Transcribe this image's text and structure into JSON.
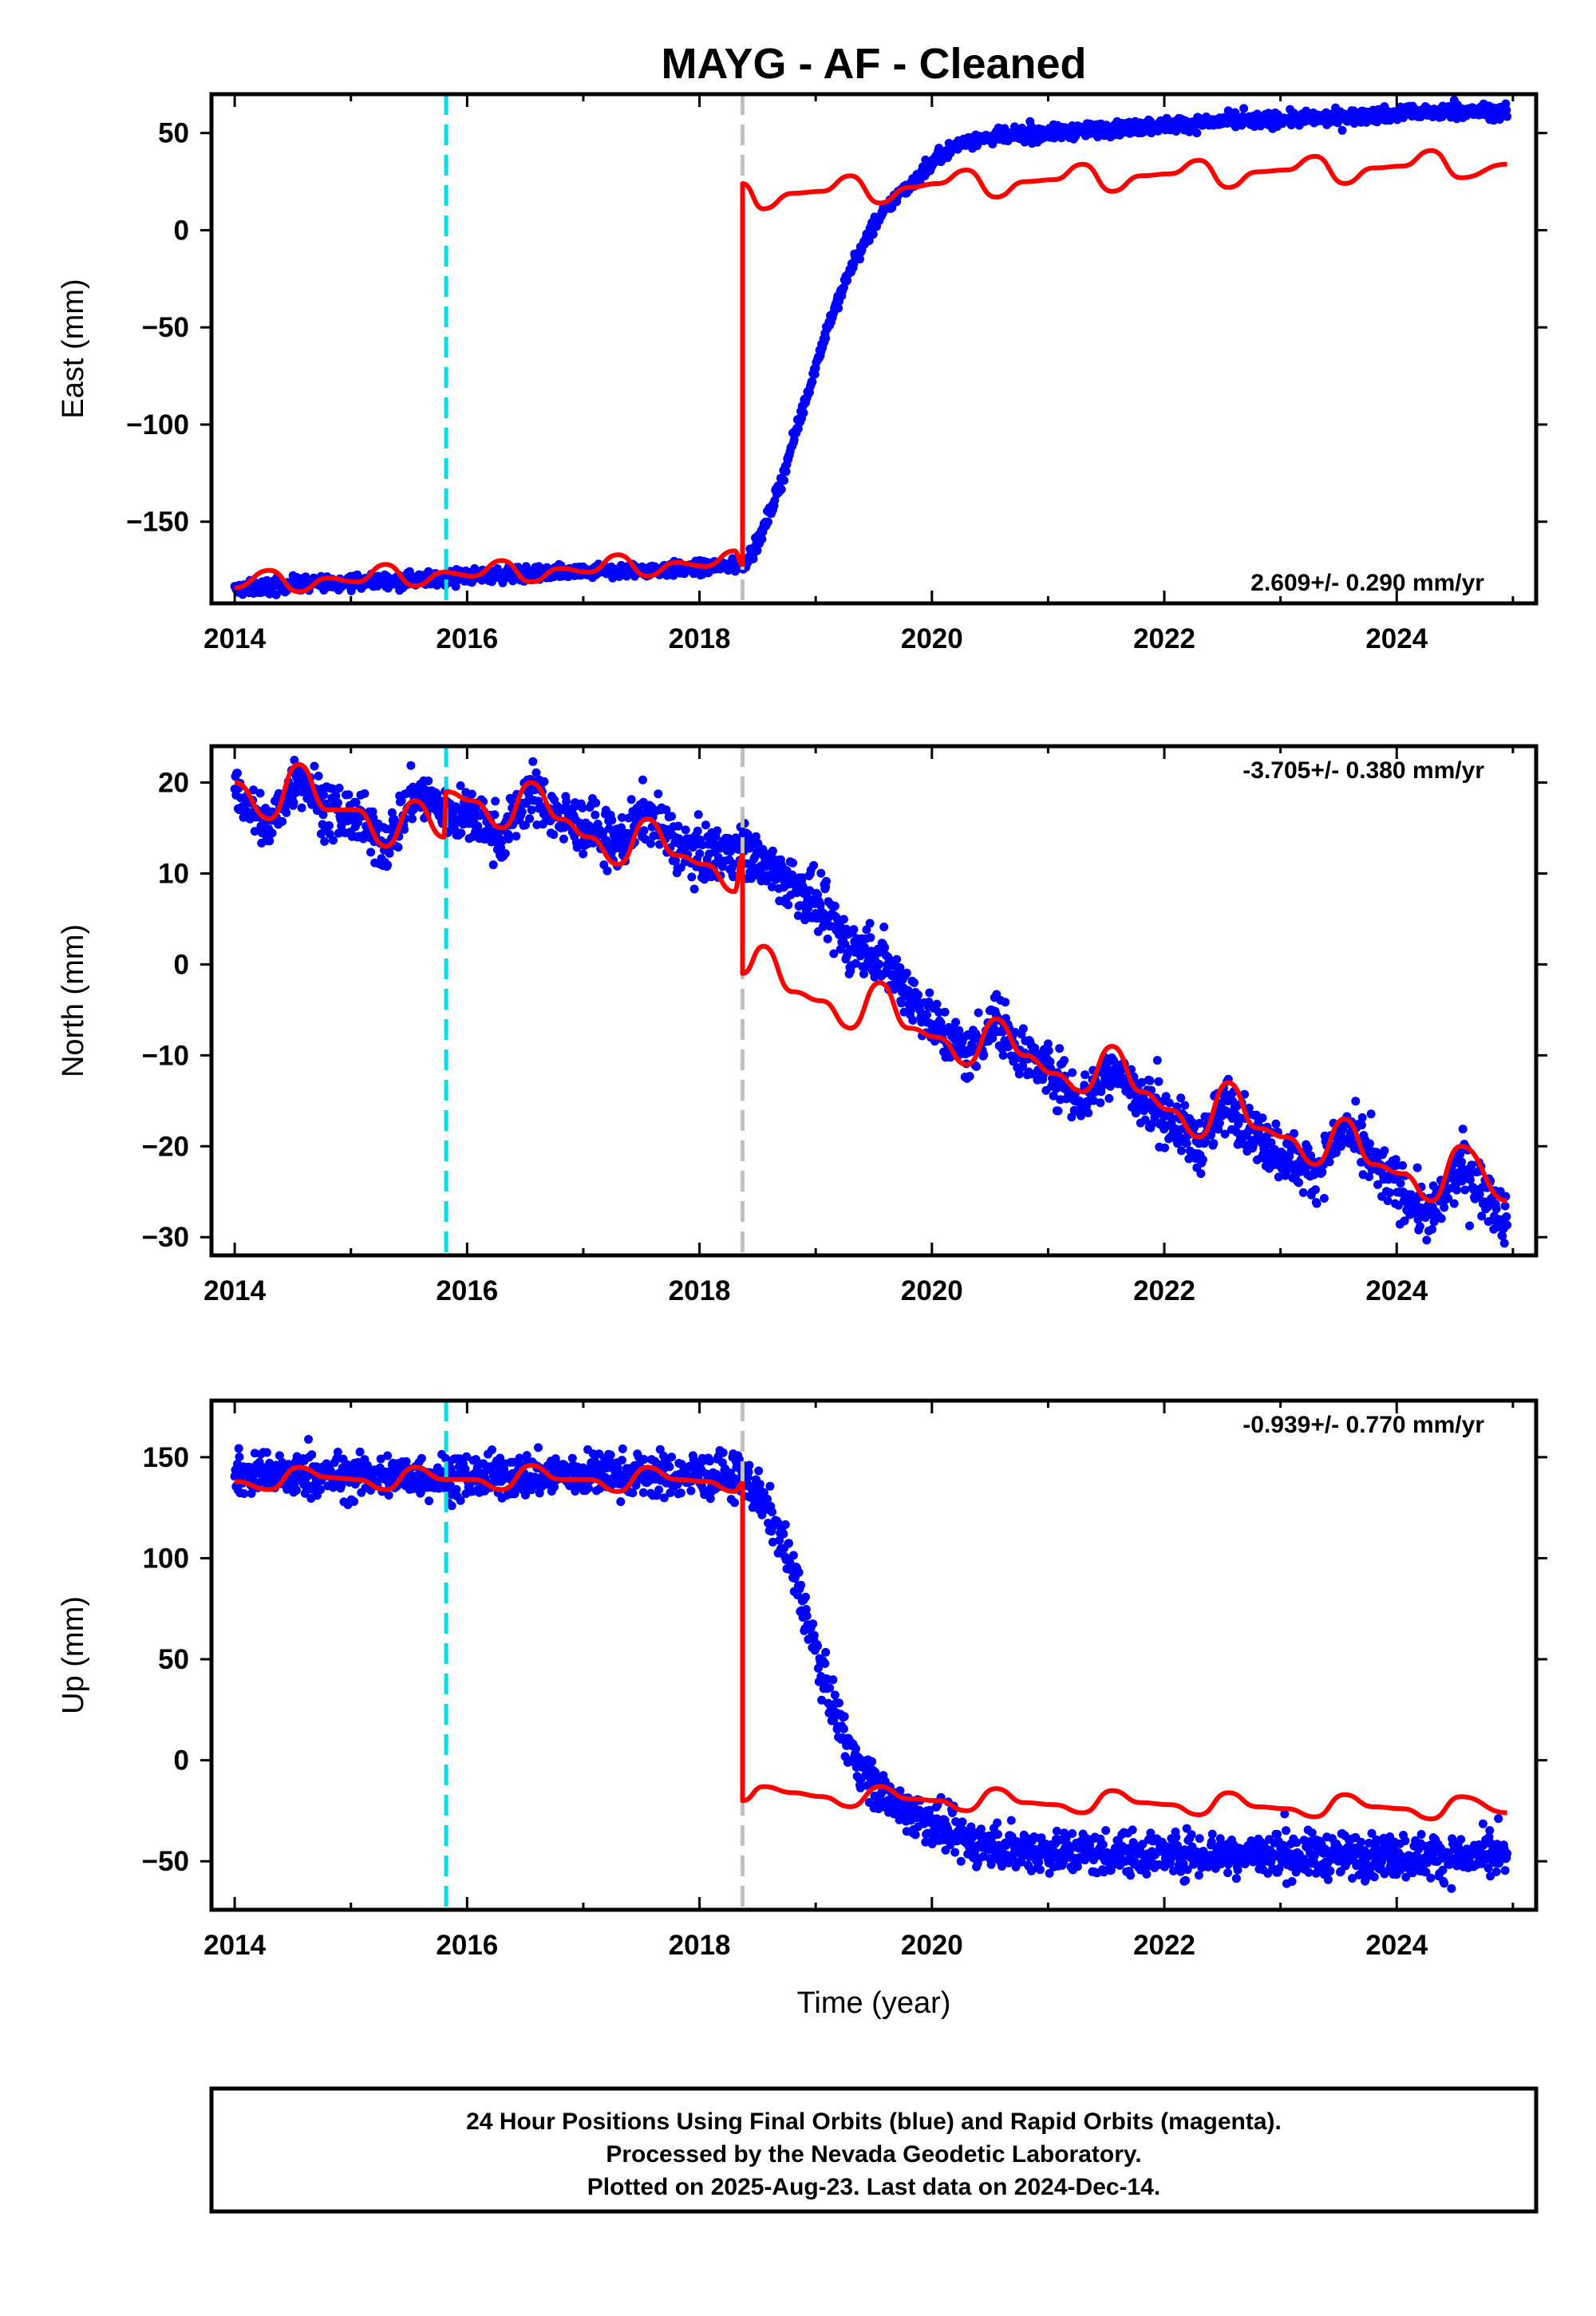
{
  "title": "MAYG  - AF - Cleaned",
  "xlabel": "Time (year)",
  "x_ticks": [
    2014,
    2016,
    2018,
    2020,
    2022,
    2024
  ],
  "xlim": [
    2013.8,
    2025.2
  ],
  "footer": {
    "line1": "24 Hour Positions Using Final Orbits (blue) and Rapid Orbits (magenta).",
    "line2": "Processed by the Nevada Geodetic Laboratory.",
    "line3": "Plotted on 2025-Aug-23. Last data on 2024-Dec-14."
  },
  "colors": {
    "final_orbits": "#0000ff",
    "model": "#ff0000",
    "cyan_line": "#00e0e0",
    "gray_line": "#c0c0c0"
  },
  "chart_data": [
    {
      "type": "scatter",
      "component": "east",
      "ylabel": "East (mm)",
      "ylim": [
        -192,
        70
      ],
      "y_ticks": [
        -150,
        -100,
        -50,
        0,
        50
      ],
      "rate_label": "2.609+/- 0.290 mm/yr",
      "rate_position": "bottom-right",
      "vertical_lines": [
        {
          "x": 2015.82,
          "color": "cyan",
          "style": "dashed"
        },
        {
          "x": 2018.37,
          "color": "gray",
          "style": "dashed"
        }
      ],
      "series": [
        {
          "kind": "points",
          "color": "blue",
          "x": [
            2014.0,
            2014.5,
            2015.0,
            2015.5,
            2016.0,
            2016.5,
            2017.0,
            2017.5,
            2018.0,
            2018.37,
            2018.5,
            2018.7,
            2018.9,
            2019.1,
            2019.3,
            2019.5,
            2019.7,
            2019.9,
            2020.1,
            2020.3,
            2020.6,
            2021.0,
            2021.5,
            2022.0,
            2022.5,
            2023.0,
            2023.5,
            2024.0,
            2024.5,
            2024.95
          ],
          "y": [
            -185,
            -182,
            -181,
            -180,
            -178,
            -177,
            -176,
            -175,
            -174,
            -172,
            -162,
            -130,
            -90,
            -50,
            -20,
            2,
            18,
            28,
            40,
            46,
            48,
            50,
            52,
            54,
            56,
            57,
            58,
            60,
            61,
            61
          ]
        },
        {
          "kind": "model",
          "color": "red",
          "x": [
            2014.0,
            2014.3,
            2014.55,
            2014.8,
            2015.05,
            2015.3,
            2015.55,
            2015.8,
            2016.05,
            2016.3,
            2016.55,
            2016.8,
            2017.05,
            2017.3,
            2017.55,
            2017.8,
            2018.05,
            2018.3,
            2018.37,
            2018.37,
            2018.55,
            2018.8,
            2019.05,
            2019.3,
            2019.55,
            2019.8,
            2020.05,
            2020.3,
            2020.55,
            2020.8,
            2021.05,
            2021.3,
            2021.55,
            2021.8,
            2022.05,
            2022.3,
            2022.55,
            2022.8,
            2023.05,
            2023.3,
            2023.55,
            2023.8,
            2024.05,
            2024.3,
            2024.55,
            2024.95
          ],
          "y": [
            -184,
            -175,
            -186,
            -179,
            -181,
            -172,
            -183,
            -176,
            -178,
            -170,
            -181,
            -174,
            -176,
            -167,
            -178,
            -171,
            -173,
            -165,
            -172,
            24,
            11,
            19,
            20,
            28,
            14,
            22,
            24,
            31,
            17,
            25,
            26,
            34,
            20,
            28,
            29,
            36,
            22,
            30,
            31,
            38,
            24,
            32,
            33,
            41,
            27,
            34
          ]
        }
      ]
    },
    {
      "type": "scatter",
      "component": "north",
      "ylabel": "North (mm)",
      "ylim": [
        -32,
        24
      ],
      "y_ticks": [
        -30,
        -20,
        -10,
        0,
        10,
        20
      ],
      "rate_label": "-3.705+/- 0.380 mm/yr",
      "rate_position": "top-right",
      "vertical_lines": [
        {
          "x": 2015.82,
          "color": "cyan",
          "style": "dashed"
        },
        {
          "x": 2018.37,
          "color": "gray",
          "style": "dashed"
        }
      ],
      "series": [
        {
          "kind": "points",
          "color": "blue",
          "x": [
            2014.0,
            2014.3,
            2014.55,
            2014.8,
            2015.05,
            2015.3,
            2015.55,
            2015.8,
            2016.05,
            2016.3,
            2016.55,
            2016.8,
            2017.05,
            2017.3,
            2017.55,
            2017.8,
            2018.05,
            2018.37,
            2018.55,
            2018.8,
            2019.05,
            2019.3,
            2019.55,
            2019.8,
            2020.05,
            2020.3,
            2020.55,
            2020.8,
            2021.05,
            2021.3,
            2021.55,
            2021.8,
            2022.05,
            2022.3,
            2022.55,
            2022.8,
            2023.05,
            2023.3,
            2023.55,
            2023.8,
            2024.05,
            2024.3,
            2024.55,
            2024.95
          ],
          "y": [
            19,
            15,
            21,
            17,
            16,
            13,
            19,
            17,
            16,
            14,
            19,
            16,
            15,
            13,
            17,
            13,
            12,
            13,
            11,
            9,
            6,
            2,
            1,
            -3,
            -7,
            -10,
            -6,
            -10,
            -12,
            -15,
            -11,
            -15,
            -17,
            -20,
            -15,
            -19,
            -21,
            -23,
            -18,
            -22,
            -25,
            -28,
            -22,
            -28
          ]
        },
        {
          "kind": "model",
          "color": "red",
          "x": [
            2014.0,
            2014.3,
            2014.55,
            2014.8,
            2015.05,
            2015.3,
            2015.55,
            2015.8,
            2015.82,
            2016.05,
            2016.3,
            2016.55,
            2016.8,
            2017.05,
            2017.3,
            2017.55,
            2017.8,
            2018.05,
            2018.3,
            2018.37,
            2018.37,
            2018.55,
            2018.8,
            2019.05,
            2019.3,
            2019.55,
            2019.8,
            2020.05,
            2020.3,
            2020.55,
            2020.8,
            2021.05,
            2021.3,
            2021.55,
            2021.8,
            2022.05,
            2022.3,
            2022.55,
            2022.8,
            2023.05,
            2023.3,
            2023.55,
            2023.8,
            2024.05,
            2024.3,
            2024.55,
            2024.95
          ],
          "y": [
            20,
            16,
            22,
            17,
            17,
            13,
            18,
            14,
            19,
            18,
            15,
            20,
            16,
            14,
            11,
            16,
            12,
            11,
            8,
            12,
            -1,
            2,
            -3,
            -4,
            -7,
            -2,
            -7,
            -8,
            -11,
            -6,
            -10,
            -12,
            -14,
            -9,
            -14,
            -16,
            -19,
            -13,
            -18,
            -19,
            -22,
            -17,
            -22,
            -23,
            -26,
            -20,
            -26
          ]
        }
      ]
    },
    {
      "type": "scatter",
      "component": "up",
      "ylabel": "Up (mm)",
      "ylim": [
        -74,
        178
      ],
      "y_ticks": [
        -50,
        0,
        50,
        100,
        150
      ],
      "rate_label": "-0.939+/- 0.770 mm/yr",
      "rate_position": "top-right",
      "vertical_lines": [
        {
          "x": 2015.82,
          "color": "cyan",
          "style": "dashed"
        },
        {
          "x": 2018.37,
          "color": "gray",
          "style": "dashed"
        }
      ],
      "series": [
        {
          "kind": "points",
          "color": "blue",
          "x": [
            2014.0,
            2014.5,
            2015.0,
            2015.5,
            2016.0,
            2016.5,
            2017.0,
            2017.5,
            2018.0,
            2018.37,
            2018.5,
            2018.7,
            2018.9,
            2019.1,
            2019.3,
            2019.5,
            2019.7,
            2019.9,
            2020.1,
            2020.3,
            2020.6,
            2021.0,
            2021.5,
            2022.0,
            2022.5,
            2023.0,
            2023.5,
            2024.0,
            2024.5,
            2024.95
          ],
          "y": [
            142,
            141,
            140,
            141,
            140,
            141,
            142,
            141,
            141,
            140,
            132,
            112,
            75,
            35,
            5,
            -12,
            -22,
            -28,
            -34,
            -40,
            -43,
            -45,
            -46,
            -46,
            -46,
            -47,
            -47,
            -47,
            -48,
            -48
          ]
        },
        {
          "kind": "model",
          "color": "red",
          "x": [
            2014.0,
            2014.3,
            2014.55,
            2014.8,
            2015.05,
            2015.3,
            2015.55,
            2015.8,
            2016.05,
            2016.3,
            2016.55,
            2016.8,
            2017.05,
            2017.3,
            2017.55,
            2017.8,
            2018.05,
            2018.3,
            2018.37,
            2018.37,
            2018.55,
            2018.8,
            2019.05,
            2019.3,
            2019.55,
            2019.8,
            2020.05,
            2020.3,
            2020.55,
            2020.8,
            2021.05,
            2021.3,
            2021.55,
            2021.8,
            2022.05,
            2022.3,
            2022.55,
            2022.8,
            2023.05,
            2023.3,
            2023.55,
            2023.8,
            2024.05,
            2024.3,
            2024.55,
            2024.95
          ],
          "y": [
            138,
            134,
            145,
            140,
            139,
            134,
            145,
            139,
            139,
            134,
            146,
            139,
            139,
            133,
            145,
            139,
            138,
            133,
            137,
            -20,
            -13,
            -16,
            -18,
            -23,
            -13,
            -19,
            -20,
            -25,
            -14,
            -21,
            -22,
            -26,
            -15,
            -21,
            -22,
            -27,
            -16,
            -23,
            -24,
            -28,
            -17,
            -23,
            -24,
            -29,
            -18,
            -26
          ]
        }
      ]
    }
  ]
}
